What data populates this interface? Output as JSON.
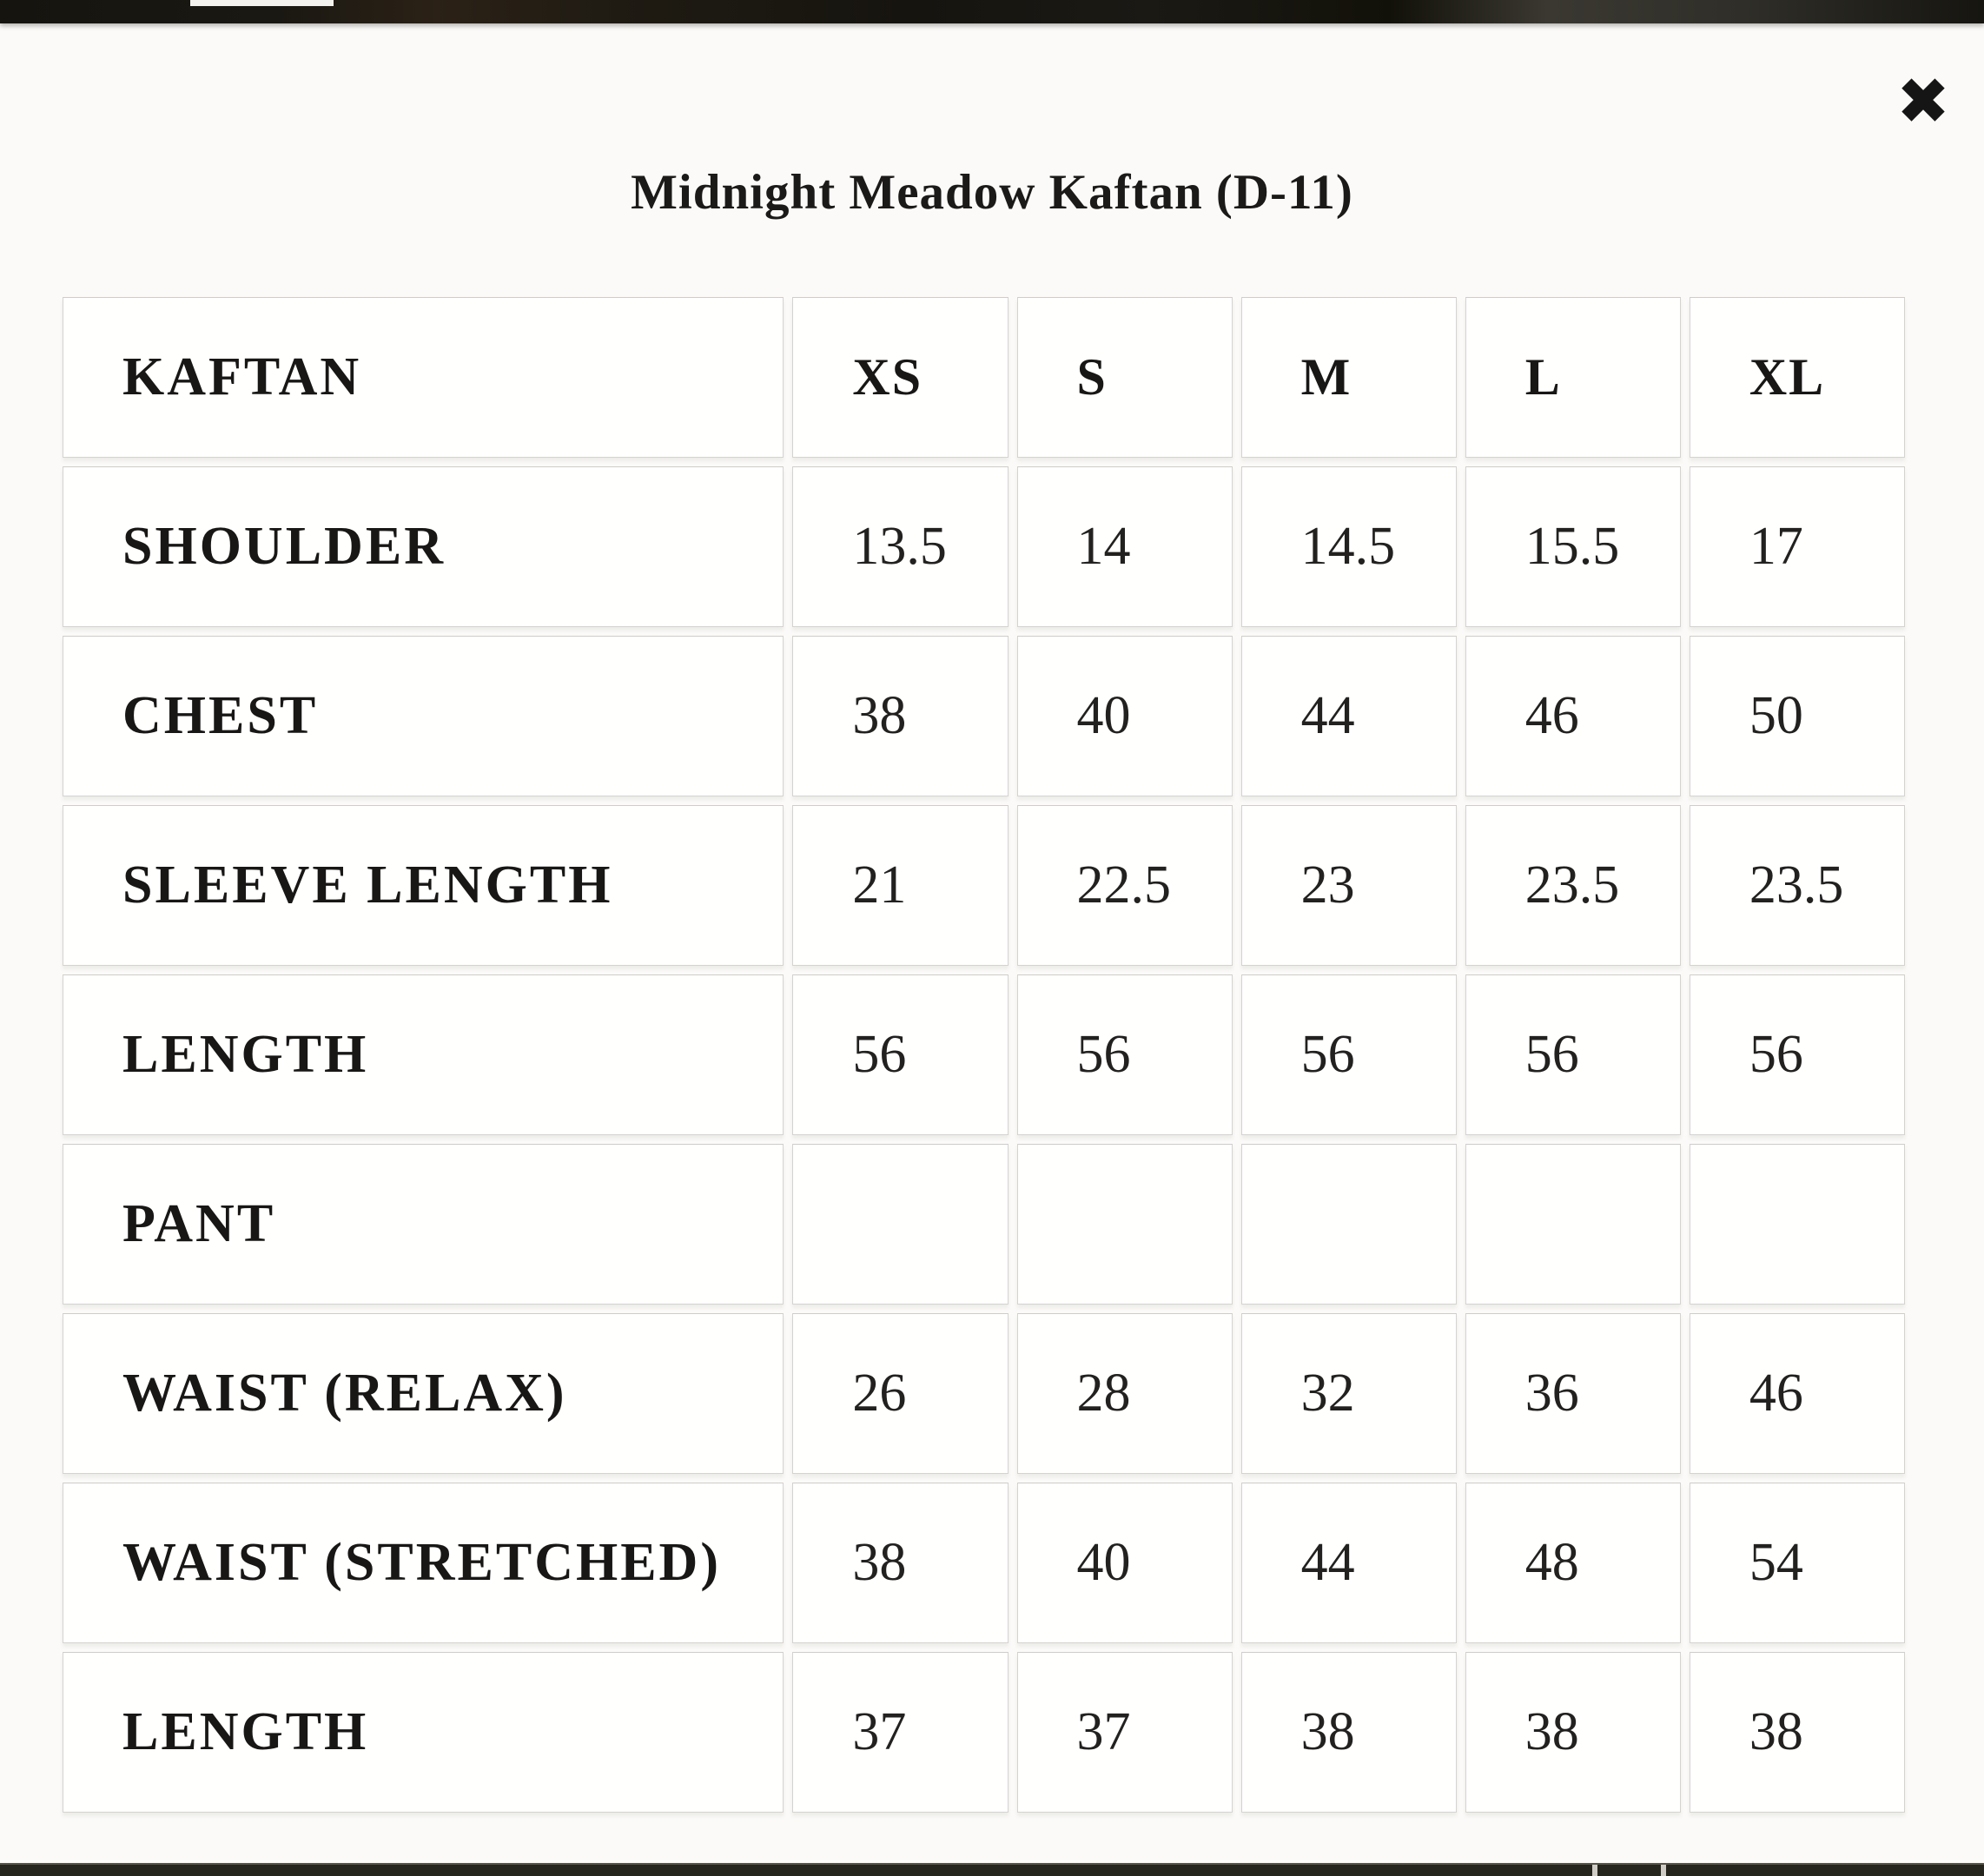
{
  "modal": {
    "title": "Midnight Meadow Kaftan (D-11)",
    "close_glyph": "✖"
  },
  "size_chart": {
    "columns": [
      "KAFTAN",
      "XS",
      "S",
      "M",
      "L",
      "XL"
    ],
    "rows": [
      {
        "label": "SHOULDER",
        "values": [
          "13.5",
          "14",
          "14.5",
          "15.5",
          "17"
        ]
      },
      {
        "label": "CHEST",
        "values": [
          "38",
          "40",
          "44",
          "46",
          "50"
        ]
      },
      {
        "label": "SLEEVE LENGTH",
        "values": [
          "21",
          "22.5",
          "23",
          "23.5",
          "23.5"
        ]
      },
      {
        "label": "LENGTH",
        "values": [
          "56",
          "56",
          "56",
          "56",
          "56"
        ]
      },
      {
        "label": "PANT",
        "values": [
          "",
          "",
          "",
          "",
          ""
        ]
      },
      {
        "label": "WAIST (RELAX)",
        "values": [
          "26",
          "28",
          "32",
          "36",
          "46"
        ]
      },
      {
        "label": "WAIST (STRETCHED)",
        "values": [
          "38",
          "40",
          "44",
          "48",
          "54"
        ]
      },
      {
        "label": "LENGTH",
        "values": [
          "37",
          "37",
          "38",
          "38",
          "38"
        ]
      }
    ]
  },
  "colors": {
    "page_edge_dark": "#1c1b15",
    "modal_background": "#fbfaf8",
    "cell_background": "#fffffe",
    "cell_border": "#d5d3d0",
    "text": "#1d1c1a"
  }
}
